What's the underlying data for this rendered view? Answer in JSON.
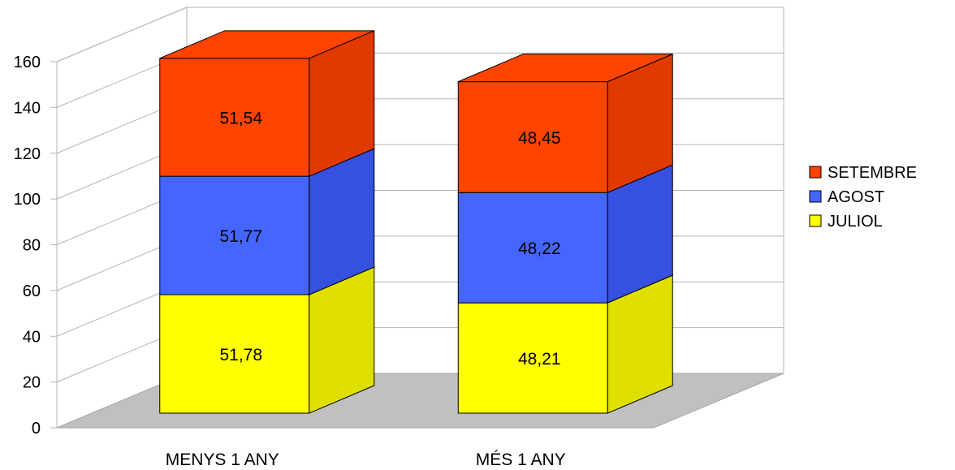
{
  "chart_data": {
    "type": "bar",
    "stacked": true,
    "three_d": true,
    "title": "",
    "xlabel": "",
    "ylabel": "",
    "ylim": [
      0,
      160
    ],
    "yticks": [
      "0",
      "20",
      "40",
      "60",
      "80",
      "100",
      "120",
      "140",
      "160"
    ],
    "grid": true,
    "legend_position": "right",
    "categories": [
      "MENYS 1 ANY",
      "MÉS 1 ANY"
    ],
    "series": [
      {
        "name": "JULIOL",
        "values": [
          51.78,
          48.21
        ],
        "labels": [
          "51,78",
          "48,21"
        ],
        "color": "#ffff00",
        "side_color": "#e0e000"
      },
      {
        "name": "AGOST",
        "values": [
          51.77,
          48.22
        ],
        "labels": [
          "51,77",
          "48,22"
        ],
        "color": "#4466ff",
        "side_color": "#3650e0"
      },
      {
        "name": "SETEMBRE",
        "values": [
          51.54,
          48.45
        ],
        "labels": [
          "51,54",
          "48,45"
        ],
        "color": "#ff4400",
        "side_color": "#e03a00"
      }
    ],
    "legend_order": [
      "SETEMBRE",
      "AGOST",
      "JULIOL"
    ],
    "floor_color": "#c0c0c0",
    "grid_color": "#b3b3b3"
  }
}
